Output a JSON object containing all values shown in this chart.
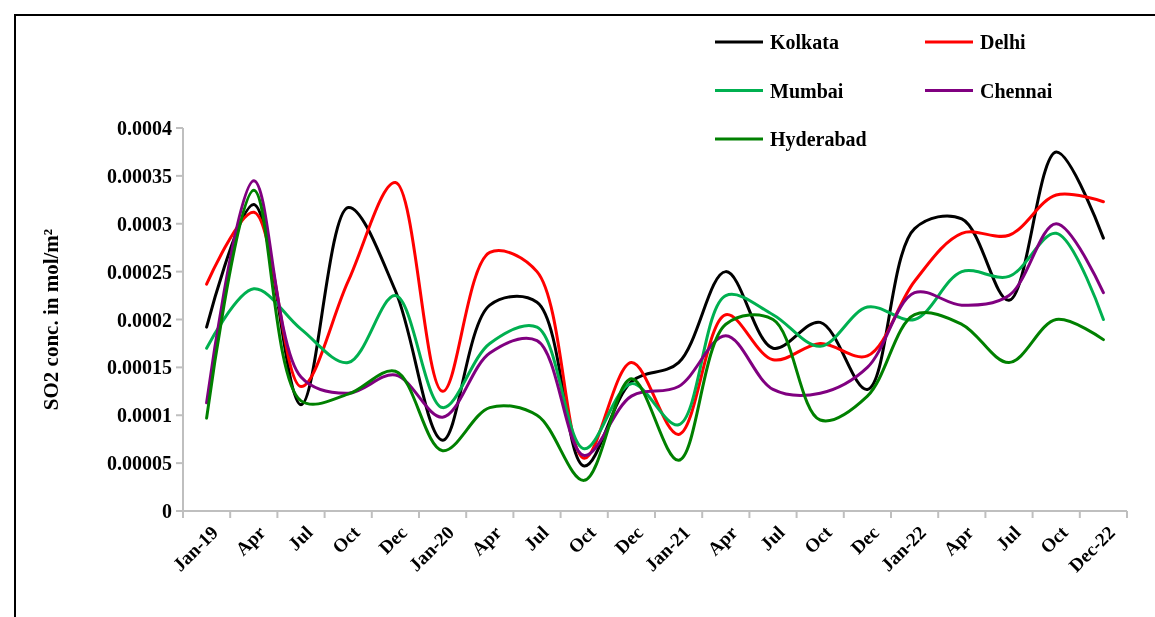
{
  "chart_data": {
    "type": "line",
    "ylabel": "SO2 conc. in mol/m²",
    "categories": [
      "Jan-19",
      "Apr",
      "Jul",
      "Oct",
      "Dec",
      "Jan-20",
      "Apr",
      "Jul",
      "Oct",
      "Dec",
      "Jan-21",
      "Apr",
      "Jul",
      "Oct",
      "Dec",
      "Jan-22",
      "Apr",
      "Jul",
      "Oct",
      "Dec-22"
    ],
    "ylim": [
      0,
      0.0004
    ],
    "yticks": [
      0,
      {
        "value": 5e-05,
        "label": "0.00005"
      },
      0.0001,
      0.00015,
      0.0002,
      0.00025,
      0.0003,
      0.00035,
      0.0004
    ],
    "grid": false,
    "legend": "top right",
    "marker": "none",
    "line_style": "solid",
    "series": [
      {
        "name": "Kolkata",
        "color": "#000000",
        "values": [
          0.000192,
          0.00032,
          0.000111,
          0.000317,
          0.00023,
          7.4e-05,
          0.000215,
          0.000218,
          4.7e-05,
          0.000135,
          0.000155,
          0.00025,
          0.00017,
          0.000197,
          0.000127,
          0.000295,
          0.000305,
          0.00022,
          0.000375,
          0.000285
        ]
      },
      {
        "name": "Delhi",
        "color": "#ff0000",
        "values": [
          0.000237,
          0.000312,
          0.00013,
          0.00024,
          0.000343,
          0.000125,
          0.00027,
          0.00025,
          5.5e-05,
          0.000155,
          8e-05,
          0.000205,
          0.000158,
          0.000175,
          0.000162,
          0.00024,
          0.00029,
          0.000288,
          0.00033,
          0.000323
        ]
      },
      {
        "name": "Mumbai",
        "color": "#00b050",
        "values": [
          0.00017,
          0.000232,
          0.00019,
          0.000155,
          0.000225,
          0.000108,
          0.000175,
          0.000192,
          6.5e-05,
          0.000133,
          9e-05,
          0.000225,
          0.000205,
          0.000172,
          0.000213,
          0.0002,
          0.00025,
          0.000245,
          0.00029,
          0.0002
        ]
      },
      {
        "name": "Chennai",
        "color": "#800080",
        "values": [
          0.000113,
          0.000345,
          0.00014,
          0.000123,
          0.000142,
          9.8e-05,
          0.000165,
          0.000178,
          5.8e-05,
          0.00012,
          0.00013,
          0.000183,
          0.000127,
          0.000123,
          0.00015,
          0.000228,
          0.000215,
          0.000225,
          0.0003,
          0.000228
        ]
      },
      {
        "name": "Hyderabad",
        "color": "#008000",
        "values": [
          9.7e-05,
          0.000335,
          0.000115,
          0.000122,
          0.000146,
          6.3e-05,
          0.000108,
          0.0001,
          3.2e-05,
          0.000138,
          5.3e-05,
          0.000195,
          0.0002,
          9.5e-05,
          0.00012,
          0.000205,
          0.000195,
          0.000155,
          0.0002,
          0.000179
        ]
      }
    ]
  }
}
